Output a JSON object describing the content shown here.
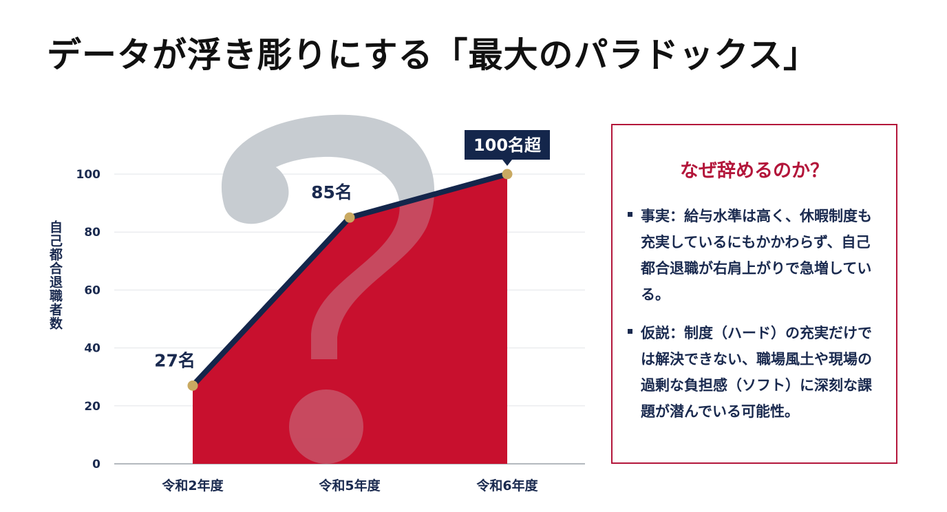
{
  "title": "データが浮き彫りにする「最大のパラドックス」",
  "chart_data": {
    "type": "area",
    "categories": [
      "令和2年度",
      "令和5年度",
      "令和6年度"
    ],
    "values": [
      27,
      85,
      100
    ],
    "data_labels": [
      "27名",
      "85名",
      "100名超"
    ],
    "ylabel": "自己都合退職者数",
    "ylim": [
      0,
      100
    ],
    "yticks": [
      0,
      20,
      40,
      60,
      80,
      100
    ],
    "grid": true,
    "colors": {
      "fill": "#c8102e",
      "line": "#14264b",
      "marker": "#c9a961",
      "callout": "#14264b",
      "question_mark": "#c8ccd1"
    },
    "background_icon": "question-mark-icon"
  },
  "info_box": {
    "title": "なぜ辞めるのか？",
    "items": [
      {
        "text": "事実：給与水準は高く、休暇制度も充実しているにもかかわらず、自己都合退職が右肩上がりで急増している。"
      },
      {
        "text": "仮説：制度（ハード）の充実だけでは解決できない、職場風土や現場の過剰な負担感（ソフト）に深刻な課題が潜んでいる可能性。"
      }
    ]
  }
}
